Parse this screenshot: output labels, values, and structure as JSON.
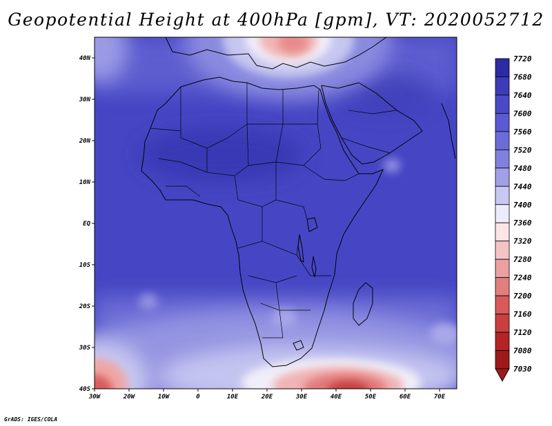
{
  "title": "Geopotential Height at 400hPa [gpm], VT: 2020052712",
  "credit": "GrADS: IGES/COLA",
  "map": {
    "region": "Africa",
    "lon_range": [
      -30,
      75
    ],
    "lat_range": [
      -40,
      45
    ],
    "lat_labels": [
      "40N",
      "30N",
      "20N",
      "10N",
      "EQ",
      "10S",
      "20S",
      "30S",
      "40S"
    ],
    "lon_labels": [
      "30W",
      "20W",
      "10W",
      "0",
      "10E",
      "20E",
      "30E",
      "40E",
      "50E",
      "60E",
      "70E"
    ],
    "features": [
      {
        "name": "mediterranean-high-gradient",
        "lon": 27,
        "lat": 44,
        "value_gpm": 7300
      },
      {
        "name": "southern-low",
        "lon": 43,
        "lat": -39,
        "value_gpm": 7050
      },
      {
        "name": "southwest-low",
        "lon": -29,
        "lat": -38,
        "value_gpm": 7250
      },
      {
        "name": "subtropical-high-band",
        "lon": 10,
        "lat": 20,
        "value_gpm": 7630
      }
    ]
  },
  "colorbar": {
    "levels": [
      "7720",
      "7680",
      "7640",
      "7600",
      "7560",
      "7520",
      "7480",
      "7440",
      "7400",
      "7360",
      "7320",
      "7280",
      "7240",
      "7200",
      "7160",
      "7120",
      "7080",
      "7030"
    ],
    "colors": [
      "#1a1a8c",
      "#2b2ba3",
      "#3c3cb8",
      "#4a4ac8",
      "#5a5ad2",
      "#6c6cd8",
      "#8080de",
      "#a0a0e8",
      "#c8c8f2",
      "#ecebfb",
      "#fbe5e5",
      "#f4c4c4",
      "#eca0a0",
      "#e27e7e",
      "#d85a5a",
      "#c93e3e",
      "#b52424",
      "#9e1a1a"
    ]
  }
}
